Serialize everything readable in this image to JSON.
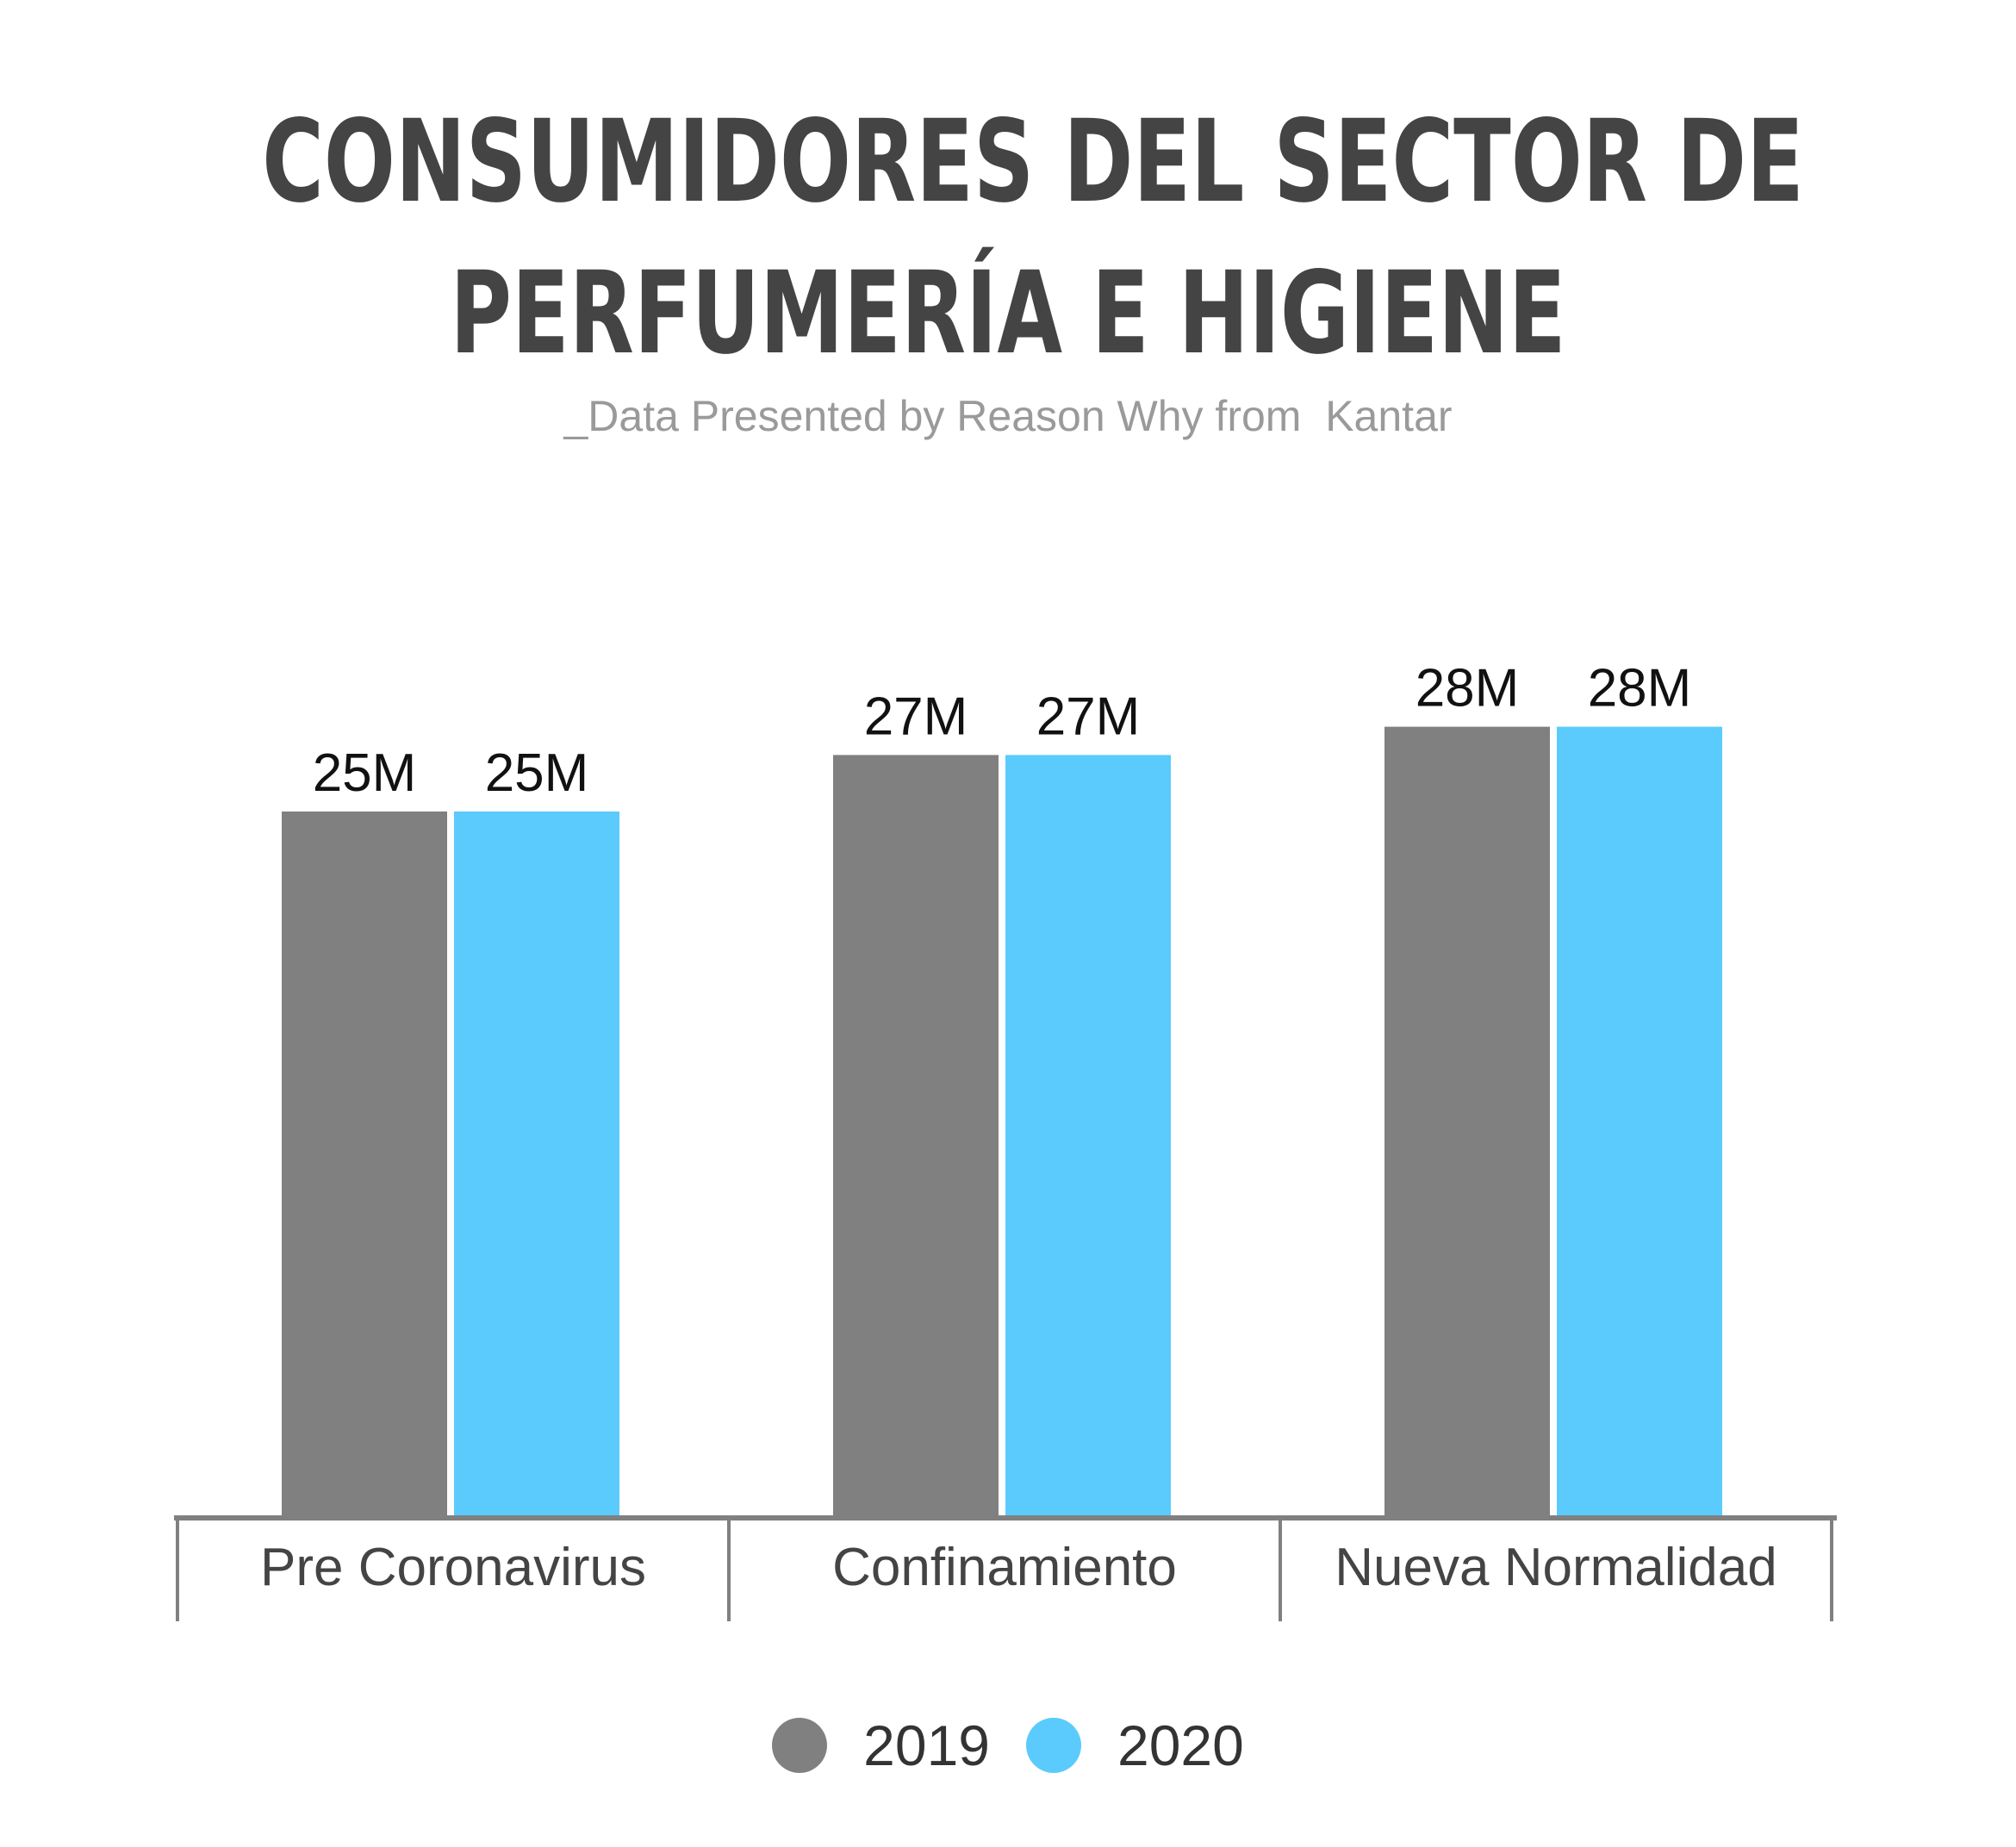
{
  "title_lines": [
    "CONSUMIDORES DEL SECTOR DE",
    "PERFUMERÍA E HIGIENE"
  ],
  "subtitle": "_Data Presented by Reason Why from  Kantar",
  "chart_data": {
    "type": "bar",
    "categories": [
      "Pre Coronavirus",
      "Confinamiento",
      "Nueva Normalidad"
    ],
    "series": [
      {
        "name": "2019",
        "values": [
          25,
          27,
          28
        ],
        "labels": [
          "25M",
          "27M",
          "28M"
        ],
        "color": "#808080"
      },
      {
        "name": "2020",
        "values": [
          25,
          27,
          28
        ],
        "labels": [
          "25M",
          "27M",
          "28M"
        ],
        "color": "#5acbfc"
      }
    ],
    "title": "CONSUMIDORES DEL SECTOR DE PERFUMERÍA E HIGIENE",
    "xlabel": "",
    "ylabel": "",
    "unit": "M",
    "ylim": [
      0,
      28
    ],
    "grid": false,
    "legend_position": "bottom-center"
  },
  "colors": {
    "axis": "#808080",
    "label_text": "#111111",
    "category_text": "#444444"
  }
}
